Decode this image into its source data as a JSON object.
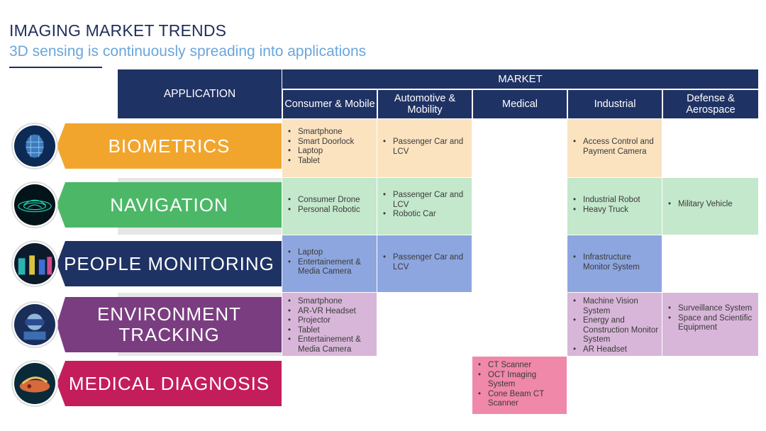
{
  "header": {
    "title": "IMAGING MARKET TRENDS",
    "subtitle": "3D sensing is continuously spreading into applications"
  },
  "table": {
    "application_label": "APPLICATION",
    "market_label": "MARKET",
    "columns": [
      {
        "label": "Consumer & Mobile"
      },
      {
        "label": "Automotive & Mobility"
      },
      {
        "label": "Medical"
      },
      {
        "label": "Industrial"
      },
      {
        "label": "Defense & Aerospace"
      }
    ],
    "rows": [
      {
        "label": "BIOMETRICS",
        "color": "#f2a52d",
        "cell_color": "#fbe3c0",
        "icon": "face-scan-icon",
        "cells": [
          [
            "Smartphone",
            "Smart Doorlock",
            "Laptop",
            "Tablet"
          ],
          [
            "Passenger Car and LCV"
          ],
          [],
          [
            "Access Control and Payment Camera"
          ],
          []
        ]
      },
      {
        "label": "NAVIGATION",
        "color": "#4cb867",
        "cell_color": "#c4e8cc",
        "icon": "lidar-car-icon",
        "cells": [
          [
            "Consumer Drone",
            "Personal Robotic"
          ],
          [
            "Passenger Car and LCV",
            "Robotic Car"
          ],
          [],
          [
            "Industrial Robot",
            "Heavy Truck"
          ],
          [
            "Military Vehicle"
          ]
        ]
      },
      {
        "label": "PEOPLE MONITORING",
        "color": "#1f3264",
        "cell_color": "#8ea6df",
        "icon": "crowd-tracking-icon",
        "cells": [
          [
            "Laptop",
            "Entertainement & Media Camera"
          ],
          [
            "Passenger Car and LCV"
          ],
          [],
          [
            "Infrastructure Monitor System"
          ],
          []
        ]
      },
      {
        "label": "ENVIRONMENT TRACKING",
        "color": "#7a3d80",
        "cell_color": "#d8b6d9",
        "icon": "ar-headset-icon",
        "cells": [
          [
            "Smartphone",
            "AR-VR Headset",
            "Projector",
            "Tablet",
            "Entertainement & Media Camera"
          ],
          [],
          [],
          [
            "Machine Vision System",
            "Energy and Construction Monitor System",
            "AR Headset"
          ],
          [
            "Surveillance System",
            "Space and Scientific Equipment"
          ]
        ]
      },
      {
        "label": "MEDICAL DIAGNOSIS",
        "color": "#c31e5b",
        "cell_color": "#f088aa",
        "icon": "medical-scan-icon",
        "cells": [
          [],
          [],
          [
            "CT Scanner",
            "OCT Imaging System",
            "Cone Beam CT Scanner"
          ],
          [],
          []
        ]
      }
    ]
  }
}
